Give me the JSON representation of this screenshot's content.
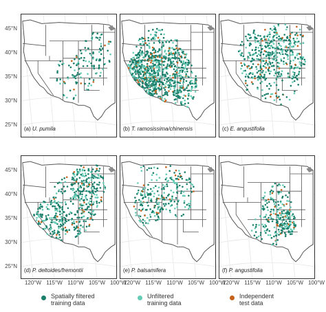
{
  "map": {
    "panels": [
      {
        "label": "(a) ",
        "species": "U. pumila",
        "density": "low"
      },
      {
        "label": "(b) ",
        "species": "T. ramosissima/chinensis",
        "density": "very-high"
      },
      {
        "label": "(c) ",
        "species": "E. angustifolia",
        "density": "high"
      },
      {
        "label": "(d) ",
        "species": "P. deltoides/fremontii",
        "density": "high"
      },
      {
        "label": "(e) ",
        "species": "P. balsamifera",
        "density": "medium"
      },
      {
        "label": "(f) ",
        "species": "P. angustifolia",
        "density": "medium"
      }
    ],
    "lat_labels": [
      "45°N",
      "40°N",
      "35°N",
      "30°N",
      "25°N"
    ],
    "lon_labels": [
      "120°W",
      "115°W",
      "110°W",
      "105°W",
      "100°W"
    ]
  },
  "legend": {
    "items": [
      {
        "line1": "Spatially filtered",
        "line2": "training data",
        "color": "#1a7f6b"
      },
      {
        "line1": "Unfiltered",
        "line2": "training data",
        "color": "#66ccb6"
      },
      {
        "line1": "Independent",
        "line2": "test data",
        "color": "#c5611a"
      }
    ]
  },
  "colors": {
    "state_border": "#555555",
    "panel_border": "#333333",
    "grid": "#e6e6e6",
    "water": "#8a8a8a"
  }
}
